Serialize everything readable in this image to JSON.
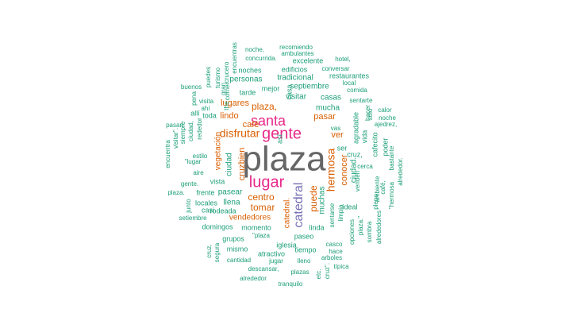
{
  "colors": {
    "gray": "#666666",
    "pink": "#e7298a",
    "purple": "#7570b3",
    "orange": "#d95f02",
    "green": "#1b9e77"
  },
  "words": [
    {
      "text": "plaza",
      "color": "gray"
    },
    {
      "text": "gente",
      "color": "pink"
    },
    {
      "text": "santa",
      "color": "pink"
    },
    {
      "text": "lugar",
      "color": "pink"
    },
    {
      "text": "catedral",
      "color": "purple"
    },
    {
      "text": "disfrutar",
      "color": "orange"
    },
    {
      "text": "hermosa",
      "color": "orange"
    },
    {
      "text": "plaza,",
      "color": "orange"
    },
    {
      "text": "lugares",
      "color": "orange"
    },
    {
      "text": "centro",
      "color": "orange"
    },
    {
      "text": "tomar",
      "color": "orange"
    },
    {
      "text": "puede",
      "color": "orange"
    },
    {
      "text": "pasar",
      "color": "orange"
    },
    {
      "text": "café",
      "color": "orange"
    },
    {
      "text": "lindo",
      "color": "orange"
    },
    {
      "text": "ver",
      "color": "orange"
    },
    {
      "text": "bien",
      "color": "orange"
    },
    {
      "text": "cruz",
      "color": "orange"
    },
    {
      "text": "conocer",
      "color": "orange"
    },
    {
      "text": "vendedores",
      "color": "orange"
    },
    {
      "text": "vegetación",
      "color": "orange"
    },
    {
      "text": "catedral.",
      "color": "orange"
    },
    {
      "text": "muchas",
      "color": "green"
    },
    {
      "text": "ciudad",
      "color": "green"
    },
    {
      "text": "ciudad.",
      "color": "green"
    },
    {
      "text": "mucha",
      "color": "green"
    },
    {
      "text": "visitar",
      "color": "green"
    },
    {
      "text": "casas",
      "color": "green"
    },
    {
      "text": "septiembre",
      "color": "green"
    },
    {
      "text": "tradicional",
      "color": "green"
    },
    {
      "text": "personas",
      "color": "green"
    },
    {
      "text": "noches",
      "color": "green"
    },
    {
      "text": "edificios",
      "color": "green"
    },
    {
      "text": "restaurantes",
      "color": "green"
    },
    {
      "text": "excelente",
      "color": "green"
    },
    {
      "text": "concurrida.",
      "color": "green"
    },
    {
      "text": "noche,",
      "color": "green"
    },
    {
      "text": "recomiendo",
      "color": "green"
    },
    {
      "text": "ambulantes",
      "color": "green"
    },
    {
      "text": "hotel,",
      "color": "green"
    },
    {
      "text": "conversar",
      "color": "green"
    },
    {
      "text": "local",
      "color": "green"
    },
    {
      "text": "comida",
      "color": "green"
    },
    {
      "text": "sentarte",
      "color": "green"
    },
    {
      "text": "solo",
      "color": "green"
    },
    {
      "text": "hacer",
      "color": "green"
    },
    {
      "text": "calor",
      "color": "green"
    },
    {
      "text": "noche",
      "color": "green"
    },
    {
      "text": "ajedrez,",
      "color": "green"
    },
    {
      "text": "agradable",
      "color": "green"
    },
    {
      "text": "vida",
      "color": "green"
    },
    {
      "text": "cafecito",
      "color": "green"
    },
    {
      "text": "poder",
      "color": "green"
    },
    {
      "text": "bastante",
      "color": "green"
    },
    {
      "text": "alrededor.",
      "color": "green"
    },
    {
      "text": "vas",
      "color": "green"
    },
    {
      "text": "ser",
      "color": "green"
    },
    {
      "text": "cruz,",
      "color": "green"
    },
    {
      "text": "cerca",
      "color": "green"
    },
    {
      "text": "venden",
      "color": "green"
    },
    {
      "text": "ambiente",
      "color": "green"
    },
    {
      "text": "café,",
      "color": "green"
    },
    {
      "text": "pleno",
      "color": "green"
    },
    {
      "text": "\"hermosa",
      "color": "green"
    },
    {
      "text": "ideal",
      "color": "green"
    },
    {
      "text": "sentarse",
      "color": "green"
    },
    {
      "text": "limpia",
      "color": "green"
    },
    {
      "text": "opciones",
      "color": "green"
    },
    {
      "text": "plaza.\"",
      "color": "green"
    },
    {
      "text": "sombra",
      "color": "green"
    },
    {
      "text": "alrededores",
      "color": "green"
    },
    {
      "text": "linda",
      "color": "green"
    },
    {
      "text": "paseo",
      "color": "green"
    },
    {
      "text": "casco",
      "color": "green"
    },
    {
      "text": "hace",
      "color": "green"
    },
    {
      "text": "arboles",
      "color": "green"
    },
    {
      "text": "típica",
      "color": "green"
    },
    {
      "text": "cruz\".",
      "color": "green"
    },
    {
      "text": "etc.",
      "color": "green"
    },
    {
      "text": "plazas",
      "color": "green"
    },
    {
      "text": "lleno",
      "color": "green"
    },
    {
      "text": "tranquilo",
      "color": "green"
    },
    {
      "text": "tiempo",
      "color": "green"
    },
    {
      "text": "iglesia",
      "color": "green"
    },
    {
      "text": "atractivo",
      "color": "green"
    },
    {
      "text": "jugar",
      "color": "green"
    },
    {
      "text": "descansar,",
      "color": "green"
    },
    {
      "text": "alrededor",
      "color": "green"
    },
    {
      "text": "cantidad",
      "color": "green"
    },
    {
      "text": "mismo",
      "color": "green"
    },
    {
      "text": "grupos",
      "color": "green"
    },
    {
      "text": "\"plaza",
      "color": "green"
    },
    {
      "text": "cruz,",
      "color": "green"
    },
    {
      "text": "segura",
      "color": "green"
    },
    {
      "text": "momento",
      "color": "green"
    },
    {
      "text": "domingos",
      "color": "green"
    },
    {
      "text": "rodeada",
      "color": "green"
    },
    {
      "text": "llena",
      "color": "green"
    },
    {
      "text": "locales",
      "color": "green"
    },
    {
      "text": "casi",
      "color": "green"
    },
    {
      "text": "setiembre",
      "color": "green"
    },
    {
      "text": "junto",
      "color": "green"
    },
    {
      "text": "frente",
      "color": "green"
    },
    {
      "text": "vista",
      "color": "green"
    },
    {
      "text": "pasear",
      "color": "green"
    },
    {
      "text": "plaza.",
      "color": "green"
    },
    {
      "text": "gente.",
      "color": "green"
    },
    {
      "text": "aire",
      "color": "green"
    },
    {
      "text": "estilo",
      "color": "green"
    },
    {
      "text": "\"lugar",
      "color": "green"
    },
    {
      "text": "visitar\".",
      "color": "green"
    },
    {
      "text": "encuentra",
      "color": "green"
    },
    {
      "text": "pasan",
      "color": "green"
    },
    {
      "text": "siempre",
      "color": "green"
    },
    {
      "text": "ciudad,",
      "color": "green"
    },
    {
      "text": "rededor",
      "color": "green"
    },
    {
      "text": "allí",
      "color": "green"
    },
    {
      "text": "visita",
      "color": "green"
    },
    {
      "text": "pena",
      "color": "green"
    },
    {
      "text": "ahí",
      "color": "green"
    },
    {
      "text": "toda",
      "color": "green"
    },
    {
      "text": "buenos",
      "color": "green"
    },
    {
      "text": "puedes",
      "color": "green"
    },
    {
      "text": "turismo",
      "color": "green"
    },
    {
      "text": "gran",
      "color": "green"
    },
    {
      "text": "crucero",
      "color": "green"
    },
    {
      "text": "comer",
      "color": "green"
    },
    {
      "text": "encuentras",
      "color": "green"
    },
    {
      "text": "the",
      "color": "green"
    },
    {
      "text": "tarde",
      "color": "green"
    },
    {
      "text": "mejor",
      "color": "green"
    },
    {
      "text": "casa",
      "color": "green"
    },
    {
      "text": "así",
      "color": "green"
    }
  ]
}
